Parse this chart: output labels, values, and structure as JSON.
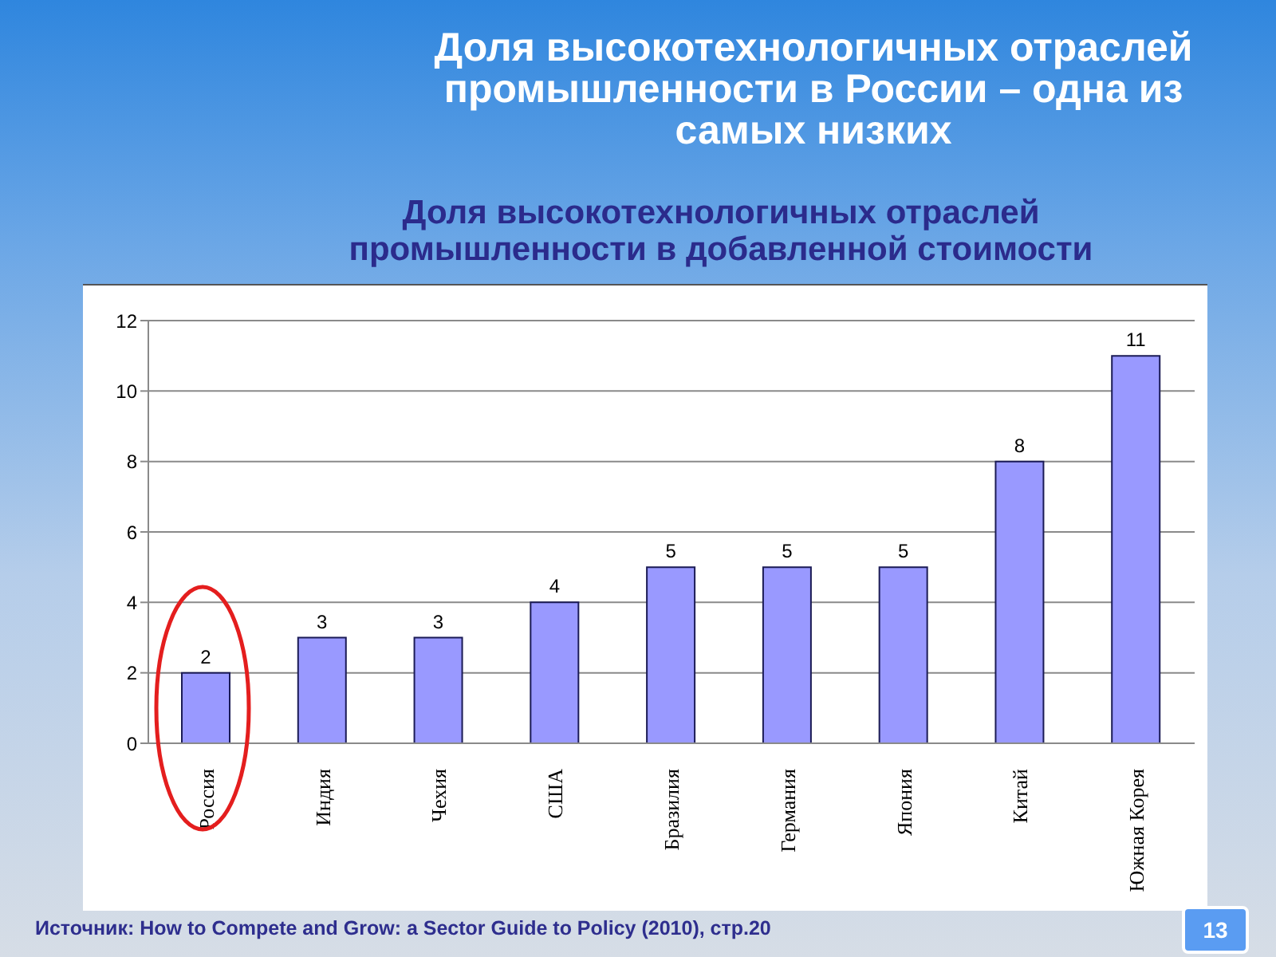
{
  "chart_data": {
    "type": "bar",
    "title": "Доля высокотехнологичных отраслей промышленности в России – одна из самых низких",
    "subtitle": "Доля высокотехнологичных отраслей промышленности в добавленной стоимости",
    "annotations": [
      "Источник: How to Compete and Grow: a Sector Guide to Policy (2010), стр.20",
      "13"
    ],
    "categories": [
      "Россия",
      "Индия",
      "Чехия",
      "США",
      "Бразилия",
      "Германия",
      "Япония",
      "Китай",
      "Южная Корея"
    ],
    "values": [
      2,
      3,
      3,
      4,
      5,
      5,
      5,
      8,
      11
    ],
    "color": "#9999ff",
    "ylim": [
      0,
      12
    ],
    "yticks": [
      0,
      2,
      4,
      6,
      8,
      10,
      12
    ],
    "grid": "y",
    "data_labels": true
  }
}
